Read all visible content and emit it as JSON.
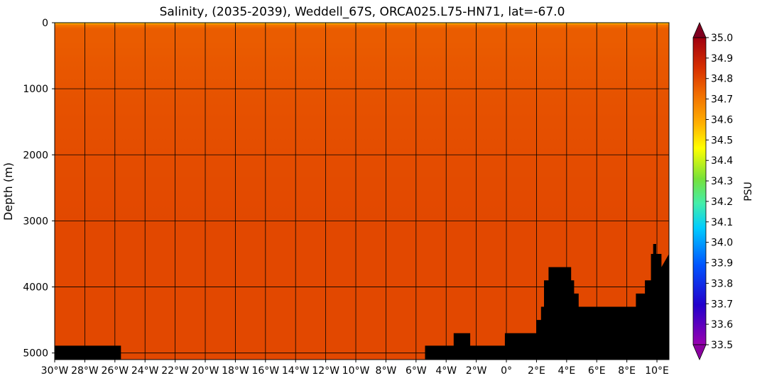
{
  "chart_data": {
    "type": "heatmap",
    "title": "Salinity, (2035-2039), Weddell_67S, ORCA025.L75-HN71, lat=-67.0",
    "xlabel": "",
    "ylabel": "Depth (m)",
    "colorbar_label": "PSU",
    "x_range": [
      -30,
      10.8
    ],
    "y_range": [
      0,
      5100
    ],
    "y_inverted": true,
    "grid": true,
    "x_ticks": [
      -30,
      -28,
      -26,
      -24,
      -22,
      -20,
      -18,
      -16,
      -14,
      -12,
      -10,
      -8,
      -6,
      -4,
      -2,
      0,
      2,
      4,
      6,
      8,
      10
    ],
    "x_tick_labels": [
      "30°W",
      "28°W",
      "26°W",
      "24°W",
      "22°W",
      "20°W",
      "18°W",
      "16°W",
      "14°W",
      "12°W",
      "10°W",
      "8°W",
      "6°W",
      "4°W",
      "2°W",
      "0°",
      "2°E",
      "4°E",
      "6°E",
      "8°E",
      "10°E"
    ],
    "y_ticks": [
      0,
      1000,
      2000,
      3000,
      4000,
      5000
    ],
    "y_tick_labels": [
      "0",
      "1000",
      "2000",
      "3000",
      "4000",
      "5000"
    ],
    "colorbar": {
      "min": 33.5,
      "max": 35.0,
      "extend": "both",
      "ticks": [
        35.0,
        34.9,
        34.8,
        34.7,
        34.6,
        34.5,
        34.4,
        34.3,
        34.2,
        34.1,
        34.0,
        33.9,
        33.8,
        33.7,
        33.6,
        33.5
      ],
      "tick_labels": [
        "35.0",
        "34.9",
        "34.8",
        "34.7",
        "34.6",
        "34.5",
        "34.4",
        "34.3",
        "34.2",
        "34.1",
        "34.0",
        "33.9",
        "33.8",
        "33.7",
        "33.6",
        "33.5"
      ],
      "colormap": "jet"
    },
    "salinity_profile": {
      "depth": [
        0,
        30,
        100,
        300,
        700,
        1200,
        2000,
        3000,
        4000,
        5000
      ],
      "value": [
        34.5,
        34.7,
        34.76,
        34.76,
        34.77,
        34.78,
        34.79,
        34.8,
        34.8,
        34.8
      ]
    },
    "bathymetry": {
      "lon": [
        -30,
        -25.6,
        -25.6,
        -5.4,
        -5.4,
        -3.5,
        -3.5,
        -2.4,
        -2.4,
        -0.1,
        -0.1,
        1.0,
        1.0,
        2.0,
        2.0,
        2.3,
        2.3,
        2.5,
        2.5,
        2.8,
        2.8,
        4.3,
        4.3,
        4.5,
        4.5,
        4.8,
        4.8,
        8.6,
        8.6,
        9.2,
        9.2,
        9.6,
        9.6,
        9.75,
        9.75,
        9.95,
        9.95,
        10.3,
        10.3,
        10.8
      ],
      "depth": [
        4890,
        4890,
        5100,
        5100,
        4890,
        4890,
        4700,
        4700,
        4890,
        4890,
        4700,
        4700,
        4700,
        4700,
        4500,
        4500,
        4300,
        4300,
        3900,
        3900,
        3700,
        3700,
        3900,
        3900,
        4100,
        4100,
        4300,
        4300,
        4100,
        4100,
        3900,
        3900,
        3500,
        3500,
        3350,
        3350,
        3500,
        3500,
        3700,
        3500
      ]
    }
  }
}
